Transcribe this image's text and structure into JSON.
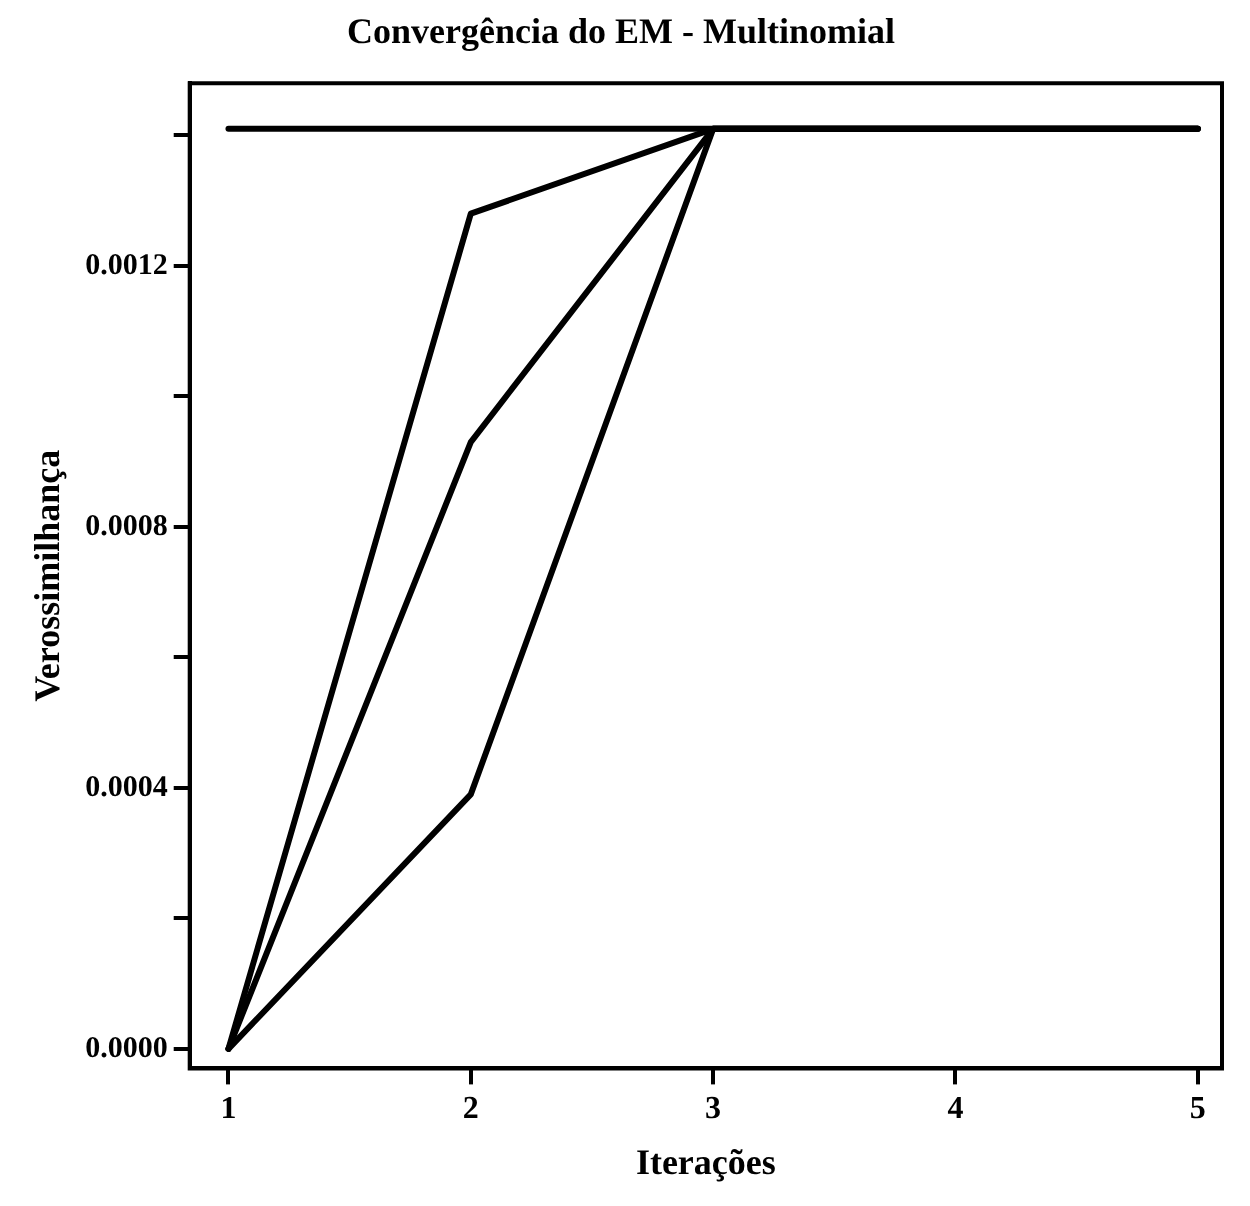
{
  "chart_data": {
    "type": "line",
    "title": "Convergência do EM - Multinomial",
    "xlabel": "Iterações",
    "ylabel": "Verossimilhança",
    "x": [
      1,
      2,
      3,
      4,
      5
    ],
    "series": [
      {
        "color": "#000000",
        "values": [
          0.00141,
          0.00141,
          0.00141,
          0.00141,
          0.00141
        ]
      },
      {
        "color": "#000000",
        "values": [
          0,
          0.00128,
          0.00141,
          0.00141,
          0.00141
        ]
      },
      {
        "color": "#000000",
        "values": [
          0,
          0.00093,
          0.00141,
          0.00141,
          0.00141
        ]
      },
      {
        "color": "#000000",
        "values": [
          0,
          0.00039,
          0.00141,
          0.00141,
          0.00141
        ]
      }
    ],
    "xlim": [
      0.84,
      5.1
    ],
    "xticks": [
      1,
      2,
      3,
      4,
      5
    ],
    "ylim": [
      -3e-05,
      0.00148
    ],
    "yticks": [
      {
        "value": 0,
        "label": "0.0000"
      },
      {
        "value": 0.0002,
        "label": null
      },
      0.0004,
      {
        "value": 0.0006,
        "label": null
      },
      0.0008,
      {
        "value": 0.001,
        "label": null
      },
      0.0012,
      {
        "value": 0.0014,
        "label": null
      }
    ],
    "grid": false,
    "legend": false,
    "marker": "none",
    "line_style": "solid"
  }
}
